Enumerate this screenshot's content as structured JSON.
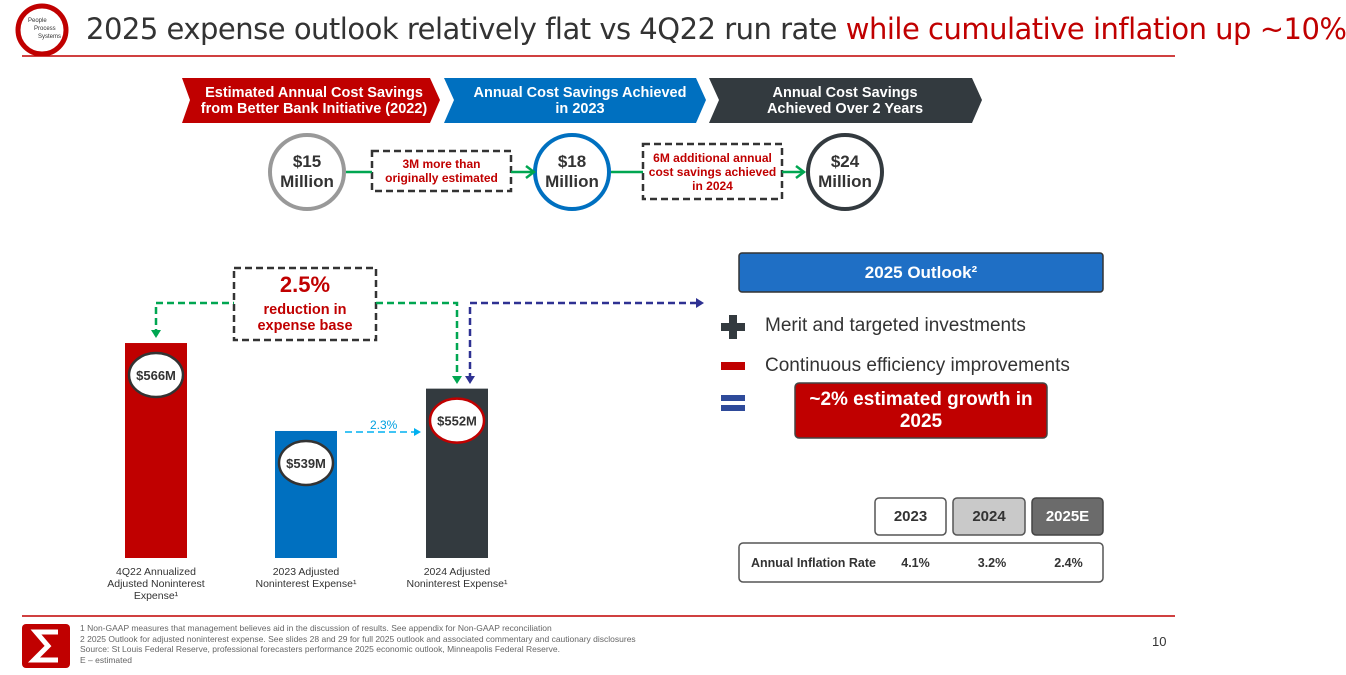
{
  "header": {
    "title": "2025 expense outlook relatively flat vs 4Q22 run rate",
    "title_highlight": "while cumulative inflation up ~10%",
    "logo": [
      "People",
      "Process",
      "Systems"
    ]
  },
  "flow": {
    "steps": [
      "Estimated Annual Cost Savings from Better Bank Initiative (2022)",
      "Annual Cost Savings Achieved in 2023",
      "Annual Cost Savings Achieved Over 2 Years"
    ],
    "amounts": [
      "$15 Million",
      "$18 Million",
      "$24 Million"
    ],
    "notes": [
      "3M more than originally estimated",
      "6M additional annual cost savings achieved in 2024"
    ]
  },
  "chart_data": {
    "type": "bar",
    "categories": [
      "4Q22 Annualized Adjusted Noninterest Expense¹",
      "2023 Adjusted Noninterest Expense¹",
      "2024 Adjusted Noninterest Expense¹"
    ],
    "values": [
      566,
      539,
      552
    ],
    "value_labels": [
      "$566M",
      "$539M",
      "$552M"
    ],
    "colors": [
      "#c00000",
      "#0070c0",
      "#333a3f"
    ],
    "ylim": [
      500,
      570
    ],
    "annotations": {
      "reduction_pct": "2.5%",
      "reduction_text": "reduction in expense base",
      "growth_pct": "2.3%"
    }
  },
  "outlook": {
    "title": "2025 Outlook²",
    "items": [
      "Merit and targeted investments",
      "Continuous efficiency improvements"
    ],
    "result": "~2% estimated growth in 2025",
    "years": [
      "2023",
      "2024",
      "2025E"
    ],
    "row_label": "Annual Inflation Rate",
    "rates": [
      "4.1%",
      "3.2%",
      "2.4%"
    ]
  },
  "footer": {
    "notes": [
      "1   Non-GAAP measures that management believes aid in the discussion of results. See appendix for Non-GAAP reconciliation",
      "2   2025 Outlook for adjusted noninterest expense. See slides 28 and 29 for full 2025 outlook and associated commentary and cautionary disclosures",
      "Source: St Louis Federal Reserve, professional forecasters performance 2025 economic outlook, Minneapolis Federal Reserve.",
      "E – estimated"
    ],
    "page": "10"
  }
}
